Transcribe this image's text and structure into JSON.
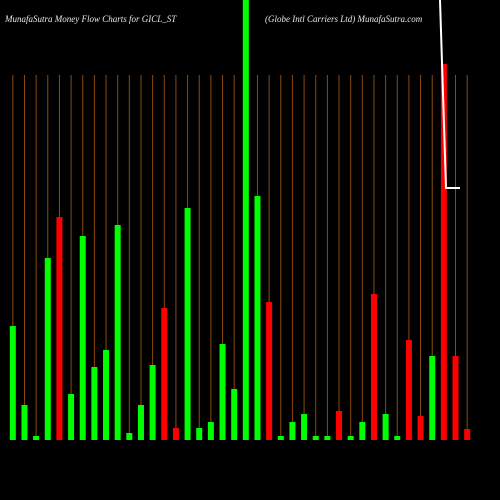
{
  "chart_data": {
    "type": "bar",
    "title": "MunafaSutra  Money Flow  Charts for GICL_ST",
    "subtitle": "(Globe   Intl Carriers Ltd) MunafaSutra.com",
    "categories": [
      null,
      null,
      null,
      null,
      null,
      null,
      null,
      null,
      null,
      null,
      null,
      null,
      null,
      null,
      null,
      null,
      null,
      null,
      null,
      null,
      null,
      null,
      null,
      null,
      null,
      null,
      null,
      null,
      null,
      null,
      null,
      null,
      null,
      null,
      null,
      null,
      null,
      null,
      null,
      null
    ],
    "values": [
      114,
      35,
      4,
      182,
      223,
      46,
      204,
      73,
      90,
      215,
      7,
      35,
      75,
      132,
      12,
      232,
      12,
      18,
      96,
      51,
      460,
      244,
      138,
      4,
      18,
      26,
      4,
      4,
      29,
      4,
      18,
      146,
      26,
      4,
      100,
      24,
      84,
      376,
      84,
      11
    ],
    "colors": [
      "#00ff00",
      "#00ff00",
      "#00ff00",
      "#00ff00",
      "#ff0000",
      "#00ff00",
      "#00ff00",
      "#00ff00",
      "#00ff00",
      "#00ff00",
      "#00ff00",
      "#00ff00",
      "#00ff00",
      "#ff0000",
      "#ff0000",
      "#00ff00",
      "#00ff00",
      "#00ff00",
      "#00ff00",
      "#00ff00",
      "#00ff00",
      "#00ff00",
      "#ff0000",
      "#00ff00",
      "#00ff00",
      "#00ff00",
      "#00ff00",
      "#00ff00",
      "#ff0000",
      "#00ff00",
      "#00ff00",
      "#ff0000",
      "#00ff00",
      "#00ff00",
      "#ff0000",
      "#ff0000",
      "#00ff00",
      "#ff0000",
      "#ff0000",
      "#ff0000"
    ],
    "ylim": [
      0,
      440
    ]
  }
}
